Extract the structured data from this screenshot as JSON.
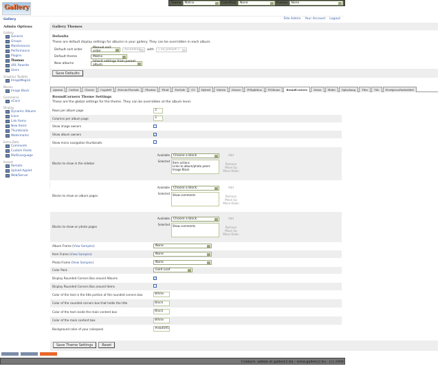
{
  "topbar": {
    "theme_label": "Theme",
    "theme": "Matrix",
    "colorpack_label": "ColorPack",
    "colorpack": "None",
    "frames_label": "Frames",
    "frames": "None"
  },
  "logo": "Gallery",
  "breadcrumb": "Gallery",
  "toplinks": [
    "Site Admin",
    "Your Account",
    "Logout"
  ],
  "sidebar": {
    "title": "Admin Options",
    "groups": [
      {
        "name": "Gallery",
        "items": [
          "General",
          "Groups",
          "Maintenance",
          "Performance",
          "Plugins",
          "Themes",
          "URL Rewrite",
          "Users"
        ]
      },
      {
        "name": "Graphics Toolkits",
        "items": [
          "ImageMagick"
        ]
      },
      {
        "name": "Blocks",
        "items": [
          "Image Block"
        ]
      },
      {
        "name": "Commerce",
        "items": [
          "eCard"
        ]
      },
      {
        "name": "Display",
        "items": [
          "Dynamic Albums",
          "Icons",
          "Link Items",
          "New Items",
          "Thumbnails",
          "Watermarks"
        ]
      },
      {
        "name": "Extra Data",
        "items": [
          "Comments",
          "Custom Fields",
          "MultiLanguage"
        ]
      },
      {
        "name": "Import",
        "items": [
          "Remote",
          "Upload Applet",
          "Web/Server"
        ]
      }
    ],
    "current": "Themes"
  },
  "page_title": "Gallery Themes",
  "defaults": {
    "title": "Defaults",
    "desc": "These are default display settings for albums in your gallery. They can be overridden in each album.",
    "sort_label": "Default sort order",
    "sort": "Manual sort order",
    "direction": "Ascending",
    "with_label": "with",
    "presort": "« no presort »",
    "theme_label": "Default theme",
    "theme": "Matrix",
    "new_label": "New albums",
    "new": "Inherit settings from parent album",
    "save": "Save Defaults"
  },
  "tabs": [
    "Ajaxian",
    "Carbon",
    "Classic",
    "Copyleft",
    "EclecticThreads",
    "Floatrix",
    "Fluid",
    "ForSale",
    "G3",
    "Hybrid",
    "Matrix",
    "Nature",
    "PGlightbox",
    "PGtheme",
    "RoundCorners",
    "Siriux",
    "Slider",
    "Splashang",
    "Tiles",
    "Tile",
    "WordpressEmbedded"
  ],
  "active_tab": "RoundCorners",
  "settings": {
    "title": "RoundCorners Theme Settings",
    "desc": "These are the global settings for the theme. They can be overridden at the album level.",
    "rows": [
      {
        "label": "Rows per album page",
        "type": "text",
        "value": "3"
      },
      {
        "label": "Columns per album page",
        "type": "text",
        "value": "3"
      },
      {
        "label": "Show image owners",
        "type": "check",
        "value": false
      },
      {
        "label": "Show album owners",
        "type": "check",
        "value": true
      },
      {
        "label": "Show micro navigation thumbnails",
        "type": "check",
        "value": false
      },
      {
        "label": "Blocks to show in the sidebar",
        "type": "blocks",
        "value": "Item actions\nLinks to album/photo peers\nImage Block"
      },
      {
        "label": "Blocks to show on album pages",
        "type": "blocks",
        "value": "Show comments"
      },
      {
        "label": "Blocks to show on photo pages",
        "type": "blocks",
        "value": "Show comments"
      },
      {
        "label": "Album Frame",
        "link": "View Samples",
        "type": "select",
        "value": "None"
      },
      {
        "label": "Item Frame",
        "link": "View Samples",
        "type": "select",
        "value": "None"
      },
      {
        "label": "Photo Frame",
        "link": "View Samples",
        "type": "select",
        "value": "None"
      },
      {
        "label": "Color Pack",
        "type": "select2",
        "value": "Gold Leaf"
      },
      {
        "label": "Display Rounded Corners Box around Albums",
        "type": "check",
        "value": true
      },
      {
        "label": "Display Rounded Corners Box around Items",
        "type": "check",
        "value": false
      },
      {
        "label": "Color of the text in the title portion of the rounded corners box",
        "type": "textw",
        "value": "White"
      },
      {
        "label": "Color of the rounded corners box that holds the title",
        "type": "textw",
        "value": "Black"
      },
      {
        "label": "Color of the text inside the main content box",
        "type": "textw",
        "value": "Black"
      },
      {
        "label": "Color of the main content box",
        "type": "textw",
        "value": "White"
      },
      {
        "label": "Background color of your colorpack",
        "type": "textw",
        "value": "#ebd095"
      }
    ],
    "block": {
      "available": "Available",
      "selected": "Selected",
      "choose": "Choose a block",
      "add": "Add",
      "remove": "Remove",
      "up": "Move Up",
      "down": "Move Down"
    },
    "save": "Save Theme Settings",
    "reset": "Reset"
  },
  "footer": "Contact: admin at gallery2.hu - www.gallery2.hu - (c) 2006"
}
